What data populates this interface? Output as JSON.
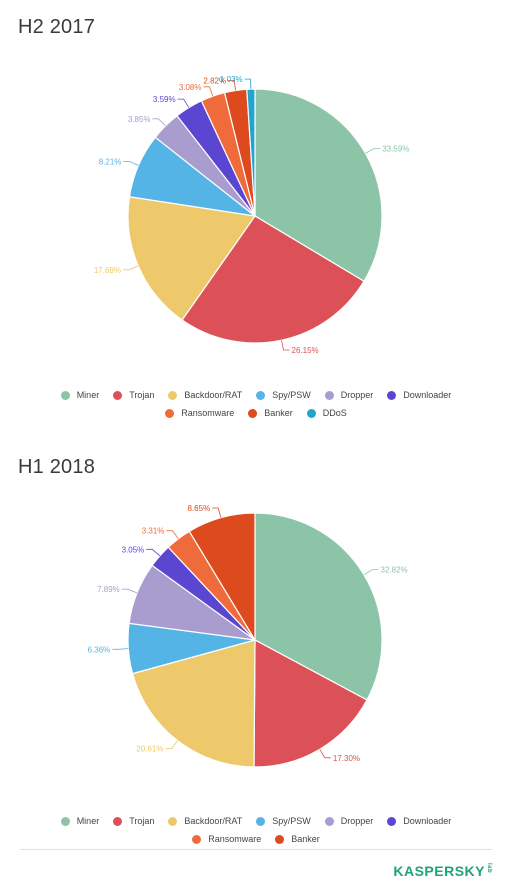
{
  "colors": {
    "Miner": "#8cc4a7",
    "Trojan": "#dc5157",
    "Backdoor/RAT": "#eec96b",
    "Spy/PSW": "#55b4e6",
    "Dropper": "#a99ccf",
    "Downloader": "#5b46d2",
    "Ransomware": "#f06b3b",
    "Banker": "#dc4a1e",
    "DDoS": "#21a5cf"
  },
  "chart_data": [
    {
      "type": "pie",
      "title": "H2 2017",
      "categories": [
        "Miner",
        "Trojan",
        "Backdoor/RAT",
        "Spy/PSW",
        "Dropper",
        "Downloader",
        "Ransomware",
        "Banker",
        "DDoS"
      ],
      "values": [
        33.59,
        26.15,
        17.69,
        8.21,
        3.85,
        3.59,
        3.08,
        2.82,
        1.03
      ],
      "labels": [
        "33.59%",
        "26.15%",
        "17.69%",
        "8.21%",
        "3.85%",
        "3.59%",
        "3.08%",
        "2.82%",
        "1.03%"
      ],
      "legend": [
        "Miner",
        "Trojan",
        "Backdoor/RAT",
        "Spy/PSW",
        "Dropper",
        "Downloader",
        "Ransomware",
        "Banker",
        "DDoS"
      ],
      "legend_position": "bottom"
    },
    {
      "type": "pie",
      "title": "H1 2018",
      "categories": [
        "Miner",
        "Trojan",
        "Backdoor/RAT",
        "Spy/PSW",
        "Dropper",
        "Downloader",
        "Ransomware",
        "Banker"
      ],
      "values": [
        32.82,
        17.3,
        20.61,
        6.36,
        7.89,
        3.05,
        3.31,
        8.65
      ],
      "labels": [
        "32.82%",
        "17.30%",
        "20.61%",
        "6.36%",
        "7.89%",
        "3.05%",
        "3.31%",
        "8.65%"
      ],
      "legend": [
        "Miner",
        "Trojan",
        "Backdoor/RAT",
        "Spy/PSW",
        "Dropper",
        "Downloader",
        "Ransomware",
        "Banker"
      ],
      "legend_position": "bottom"
    }
  ],
  "brand": {
    "name": "KASPERSKY",
    "tag": "lab"
  }
}
